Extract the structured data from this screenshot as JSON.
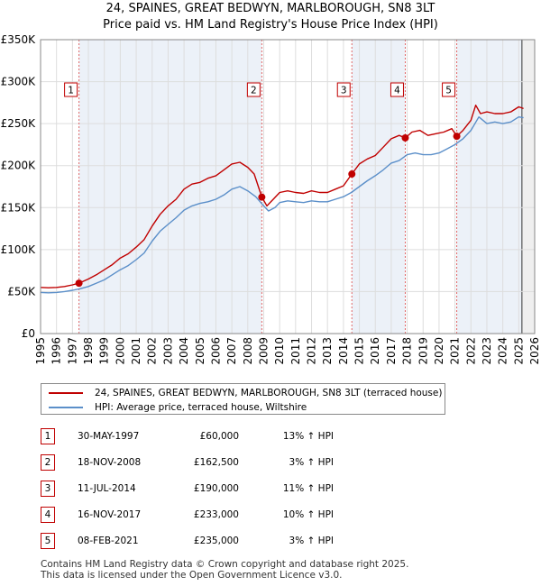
{
  "chart_data": {
    "type": "line",
    "title": "24, SPAINES, GREAT BEDWYN, MARLBOROUGH, SN8 3LT",
    "subtitle": "Price paid vs. HM Land Registry's House Price Index (HPI)",
    "xlim": [
      1995,
      2026
    ],
    "ylim": [
      0,
      350000
    ],
    "x_ticks": [
      "1995",
      "1996",
      "1997",
      "1998",
      "1999",
      "2000",
      "2001",
      "2002",
      "2003",
      "2004",
      "2005",
      "2006",
      "2007",
      "2008",
      "2009",
      "2010",
      "2011",
      "2012",
      "2013",
      "2014",
      "2015",
      "2016",
      "2017",
      "2018",
      "2019",
      "2020",
      "2021",
      "2022",
      "2023",
      "2024",
      "2025",
      "2026"
    ],
    "y_ticks": [
      {
        "value": 0,
        "label": "£0"
      },
      {
        "value": 50000,
        "label": "£50K"
      },
      {
        "value": 100000,
        "label": "£100K"
      },
      {
        "value": 150000,
        "label": "£150K"
      },
      {
        "value": 200000,
        "label": "£200K"
      },
      {
        "value": 250000,
        "label": "£250K"
      },
      {
        "value": 300000,
        "label": "£300K"
      },
      {
        "value": 350000,
        "label": "£350K"
      }
    ],
    "grid": true,
    "colors": {
      "property": "#c00000",
      "hpi": "#5b8fc9",
      "shade": "#dde6f3",
      "grid": "#dddddd"
    },
    "series": [
      {
        "name": "24, SPAINES, GREAT BEDWYN, MARLBOROUGH, SN8 3LT (terraced house)",
        "x": [
          1995.0,
          1995.5,
          1996.0,
          1996.5,
          1997.0,
          1997.41,
          1998.0,
          1998.5,
          1999.0,
          1999.5,
          2000.0,
          2000.5,
          2001.0,
          2001.5,
          2002.0,
          2002.5,
          2003.0,
          2003.5,
          2004.0,
          2004.5,
          2005.0,
          2005.5,
          2006.0,
          2006.5,
          2007.0,
          2007.5,
          2008.0,
          2008.4,
          2008.88,
          2009.2,
          2009.6,
          2010.0,
          2010.5,
          2011.0,
          2011.5,
          2012.0,
          2012.5,
          2013.0,
          2013.5,
          2014.0,
          2014.53,
          2015.0,
          2015.5,
          2016.0,
          2016.5,
          2017.0,
          2017.5,
          2017.88,
          2018.3,
          2018.8,
          2019.3,
          2019.8,
          2020.3,
          2020.8,
          2021.11,
          2021.5,
          2022.0,
          2022.3,
          2022.6,
          2023.0,
          2023.5,
          2024.0,
          2024.5,
          2025.0,
          2025.3
        ],
        "values": [
          55000,
          54500,
          55000,
          56000,
          58000,
          60000,
          65000,
          70000,
          76000,
          82000,
          90000,
          95000,
          103000,
          112000,
          128000,
          142000,
          152000,
          160000,
          172000,
          178000,
          180000,
          185000,
          188000,
          195000,
          202000,
          204000,
          198000,
          190000,
          162500,
          152000,
          160000,
          168000,
          170000,
          168000,
          167000,
          170000,
          168000,
          168000,
          172000,
          176000,
          190000,
          202000,
          208000,
          212000,
          222000,
          232000,
          236000,
          233000,
          240000,
          242000,
          236000,
          238000,
          240000,
          244000,
          235000,
          242000,
          254000,
          272000,
          262000,
          264000,
          262000,
          262000,
          264000,
          270000,
          268000
        ]
      },
      {
        "name": "HPI: Average price, terraced house, Wiltshire",
        "x": [
          1995.0,
          1995.5,
          1996.0,
          1996.5,
          1997.0,
          1997.5,
          1998.0,
          1998.5,
          1999.0,
          1999.5,
          2000.0,
          2000.5,
          2001.0,
          2001.5,
          2002.0,
          2002.5,
          2003.0,
          2003.5,
          2004.0,
          2004.5,
          2005.0,
          2005.5,
          2006.0,
          2006.5,
          2007.0,
          2007.5,
          2008.0,
          2008.5,
          2009.0,
          2009.3,
          2009.7,
          2010.0,
          2010.5,
          2011.0,
          2011.5,
          2012.0,
          2012.5,
          2013.0,
          2013.5,
          2014.0,
          2014.5,
          2015.0,
          2015.5,
          2016.0,
          2016.5,
          2017.0,
          2017.5,
          2018.0,
          2018.5,
          2019.0,
          2019.5,
          2020.0,
          2020.5,
          2021.0,
          2021.5,
          2022.0,
          2022.5,
          2023.0,
          2023.5,
          2024.0,
          2024.5,
          2025.0,
          2025.3
        ],
        "values": [
          49000,
          48500,
          49000,
          50000,
          51500,
          53500,
          56000,
          60000,
          64000,
          70000,
          76000,
          81000,
          88000,
          96000,
          110000,
          122000,
          130000,
          138000,
          147000,
          152000,
          155000,
          157000,
          160000,
          165000,
          172000,
          175000,
          170000,
          163000,
          152000,
          146000,
          150000,
          156000,
          158000,
          157000,
          156000,
          158000,
          157000,
          157000,
          160000,
          163000,
          168000,
          175000,
          182000,
          188000,
          195000,
          203000,
          206000,
          213000,
          215000,
          213000,
          213000,
          215000,
          220000,
          225000,
          232000,
          242000,
          258000,
          250000,
          252000,
          250000,
          252000,
          258000,
          257000
        ]
      }
    ],
    "transactions": [
      {
        "id": "1",
        "year": 1997.41,
        "price": 60000
      },
      {
        "id": "2",
        "year": 2008.88,
        "price": 162500
      },
      {
        "id": "3",
        "year": 2014.53,
        "price": 190000
      },
      {
        "id": "4",
        "year": 2017.88,
        "price": 233000
      },
      {
        "id": "5",
        "year": 2021.11,
        "price": 235000
      }
    ],
    "forecast_start": 2025.2
  },
  "legend": {
    "property_label": "24, SPAINES, GREAT BEDWYN, MARLBOROUGH, SN8 3LT (terraced house)",
    "hpi_label": "HPI: Average price, terraced house, Wiltshire"
  },
  "table": {
    "rows": [
      {
        "id": "1",
        "date": "30-MAY-1997",
        "price": "£60,000",
        "hpi": "13% ↑ HPI"
      },
      {
        "id": "2",
        "date": "18-NOV-2008",
        "price": "£162,500",
        "hpi": "3% ↑ HPI"
      },
      {
        "id": "3",
        "date": "11-JUL-2014",
        "price": "£190,000",
        "hpi": "11% ↑ HPI"
      },
      {
        "id": "4",
        "date": "16-NOV-2017",
        "price": "£233,000",
        "hpi": "10% ↑ HPI"
      },
      {
        "id": "5",
        "date": "08-FEB-2021",
        "price": "£235,000",
        "hpi": "3% ↑ HPI"
      }
    ]
  },
  "footer": {
    "line1": "Contains HM Land Registry data © Crown copyright and database right 2025.",
    "line2": "This data is licensed under the Open Government Licence v3.0."
  }
}
